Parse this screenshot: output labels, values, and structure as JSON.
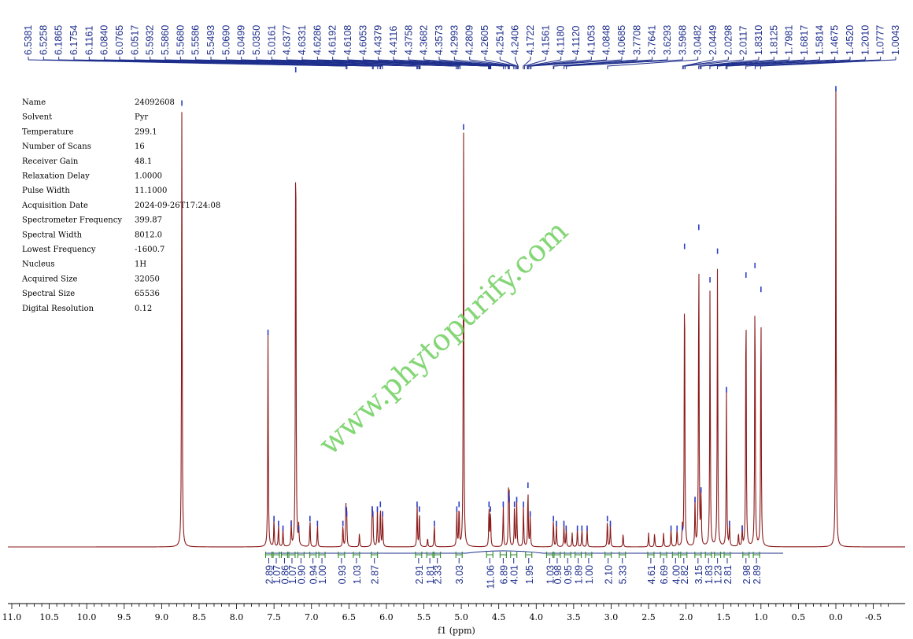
{
  "chart_data": {
    "type": "line",
    "title": "",
    "xlabel": "f1 (ppm)",
    "ylabel": "",
    "xlim": [
      11.0,
      -0.7
    ],
    "x_ticks": [
      "11.0",
      "10.5",
      "10.0",
      "9.5",
      "9.0",
      "8.5",
      "8.0",
      "7.5",
      "7.0",
      "6.5",
      "6.0",
      "5.5",
      "5.0",
      "4.5",
      "4.0",
      "3.5",
      "3.0",
      "2.5",
      "2.0",
      "1.5",
      "1.0",
      "0.5",
      "0.0",
      "-0.5"
    ],
    "x_tick_values": [
      11.0,
      10.5,
      10.0,
      9.5,
      9.0,
      8.5,
      8.0,
      7.5,
      7.0,
      6.5,
      6.0,
      5.5,
      5.0,
      4.5,
      4.0,
      3.5,
      3.0,
      2.5,
      2.0,
      1.5,
      1.0,
      0.5,
      0.0,
      -0.5
    ],
    "line_color": "#8b1a1a",
    "peak_label_color": "#1f2f8c",
    "integral_color": "#2e8b2e",
    "peaks_ppm": [
      "6.5381",
      "6.5258",
      "6.1865",
      "6.1754",
      "6.1161",
      "6.0840",
      "6.0765",
      "6.0517",
      "5.5932",
      "5.5860",
      "5.5680",
      "5.5586",
      "5.5493",
      "5.0690",
      "5.0499",
      "5.0350",
      "5.0161",
      "4.6377",
      "4.6331",
      "4.6286",
      "4.6192",
      "4.6108",
      "4.6053",
      "4.4379",
      "4.4116",
      "4.3758",
      "4.3682",
      "4.3573",
      "4.2993",
      "4.2809",
      "4.2605",
      "4.2514",
      "4.2406",
      "4.1722",
      "4.1561",
      "4.1180",
      "4.1120",
      "4.1053",
      "4.0848",
      "4.0685",
      "3.7708",
      "3.7641",
      "3.6293",
      "3.5968",
      "3.0482",
      "2.0449",
      "2.0298",
      "2.0117",
      "1.8310",
      "1.8125",
      "1.7981",
      "1.6817",
      "1.5814",
      "1.4675",
      "1.4520",
      "1.2010",
      "1.0777",
      "1.0043"
    ],
    "integrals": [
      "2.89",
      "1.07",
      "0.86",
      "1.07",
      "0.90",
      "0.94",
      "1.00",
      "0.93",
      "1.03",
      "2.87",
      "2.91",
      "1.81",
      "2.33",
      "3.03",
      "11.06",
      "6.89",
      "4.01",
      "1.95",
      "1.03",
      "0.98",
      "0.95",
      "1.89",
      "1.00",
      "2.10",
      "5.33",
      "4.61",
      "6.69",
      "4.00",
      "2.82",
      "3.15",
      "1.83",
      "1.23",
      "2.81",
      "2.98",
      "2.89"
    ],
    "integral_centers": [
      7.57,
      7.47,
      7.36,
      7.26,
      7.14,
      6.98,
      6.86,
      6.6,
      6.4,
      6.16,
      5.57,
      5.42,
      5.32,
      5.03,
      4.62,
      4.44,
      4.3,
      4.1,
      3.82,
      3.72,
      3.58,
      3.44,
      3.3,
      3.04,
      2.85,
      2.47,
      2.3,
      2.14,
      2.03,
      1.84,
      1.7,
      1.58,
      1.45,
      1.2,
      1.06
    ],
    "spectrum_peaks": [
      {
        "ppm": 8.73,
        "height": 0.93
      },
      {
        "ppm": 7.58,
        "height": 0.45
      },
      {
        "ppm": 7.5,
        "height": 0.06
      },
      {
        "ppm": 7.44,
        "height": 0.05
      },
      {
        "ppm": 7.38,
        "height": 0.04
      },
      {
        "ppm": 7.27,
        "height": 0.05
      },
      {
        "ppm": 7.21,
        "height": 1.0
      },
      {
        "ppm": 7.17,
        "height": 0.04
      },
      {
        "ppm": 7.02,
        "height": 0.06
      },
      {
        "ppm": 6.92,
        "height": 0.05
      },
      {
        "ppm": 6.58,
        "height": 0.05
      },
      {
        "ppm": 6.54,
        "height": 0.08
      },
      {
        "ppm": 6.53,
        "height": 0.07
      },
      {
        "ppm": 6.36,
        "height": 0.03
      },
      {
        "ppm": 6.19,
        "height": 0.08
      },
      {
        "ppm": 6.18,
        "height": 0.07
      },
      {
        "ppm": 6.12,
        "height": 0.08
      },
      {
        "ppm": 6.08,
        "height": 0.09
      },
      {
        "ppm": 6.05,
        "height": 0.07
      },
      {
        "ppm": 5.59,
        "height": 0.09
      },
      {
        "ppm": 5.56,
        "height": 0.08
      },
      {
        "ppm": 5.45,
        "height": 0.02
      },
      {
        "ppm": 5.36,
        "height": 0.05
      },
      {
        "ppm": 5.06,
        "height": 0.08
      },
      {
        "ppm": 5.03,
        "height": 0.09
      },
      {
        "ppm": 4.97,
        "height": 0.88
      },
      {
        "ppm": 4.63,
        "height": 0.09
      },
      {
        "ppm": 4.61,
        "height": 0.08
      },
      {
        "ppm": 4.44,
        "height": 0.09
      },
      {
        "ppm": 4.37,
        "height": 0.11
      },
      {
        "ppm": 4.36,
        "height": 0.1
      },
      {
        "ppm": 4.29,
        "height": 0.09
      },
      {
        "ppm": 4.26,
        "height": 0.1
      },
      {
        "ppm": 4.17,
        "height": 0.09
      },
      {
        "ppm": 4.11,
        "height": 0.13
      },
      {
        "ppm": 4.08,
        "height": 0.07
      },
      {
        "ppm": 3.77,
        "height": 0.06
      },
      {
        "ppm": 3.73,
        "height": 0.05
      },
      {
        "ppm": 3.63,
        "height": 0.05
      },
      {
        "ppm": 3.6,
        "height": 0.04
      },
      {
        "ppm": 3.52,
        "height": 0.03
      },
      {
        "ppm": 3.45,
        "height": 0.04
      },
      {
        "ppm": 3.39,
        "height": 0.04
      },
      {
        "ppm": 3.32,
        "height": 0.04
      },
      {
        "ppm": 3.05,
        "height": 0.06
      },
      {
        "ppm": 3.01,
        "height": 0.05
      },
      {
        "ppm": 2.84,
        "height": 0.03
      },
      {
        "ppm": 2.5,
        "height": 0.03
      },
      {
        "ppm": 2.42,
        "height": 0.03
      },
      {
        "ppm": 2.3,
        "height": 0.03
      },
      {
        "ppm": 2.2,
        "height": 0.04
      },
      {
        "ppm": 2.12,
        "height": 0.04
      },
      {
        "ppm": 2.05,
        "height": 0.04
      },
      {
        "ppm": 2.02,
        "height": 0.63
      },
      {
        "ppm": 1.88,
        "height": 0.1
      },
      {
        "ppm": 1.83,
        "height": 0.67
      },
      {
        "ppm": 1.8,
        "height": 0.12
      },
      {
        "ppm": 1.68,
        "height": 0.56
      },
      {
        "ppm": 1.58,
        "height": 0.62
      },
      {
        "ppm": 1.46,
        "height": 0.33
      },
      {
        "ppm": 1.42,
        "height": 0.05
      },
      {
        "ppm": 1.3,
        "height": 0.03
      },
      {
        "ppm": 1.25,
        "height": 0.04
      },
      {
        "ppm": 1.2,
        "height": 0.57
      },
      {
        "ppm": 1.08,
        "height": 0.59
      },
      {
        "ppm": 1.0,
        "height": 0.54
      },
      {
        "ppm": 0.0,
        "height": 0.96
      }
    ]
  },
  "parameters": [
    {
      "label": "Name",
      "value": "24092608"
    },
    {
      "label": "Solvent",
      "value": "Pyr"
    },
    {
      "label": "Temperature",
      "value": "299.1"
    },
    {
      "label": "Number of Scans",
      "value": "16"
    },
    {
      "label": "Receiver Gain",
      "value": "48.1"
    },
    {
      "label": "Relaxation Delay",
      "value": "1.0000"
    },
    {
      "label": "Pulse Width",
      "value": "11.1000"
    },
    {
      "label": "Acquisition Date",
      "value": "2024-09-26T17:24:08"
    },
    {
      "label": "Spectrometer Frequency",
      "value": "399.87"
    },
    {
      "label": "Spectral Width",
      "value": "8012.0"
    },
    {
      "label": "Lowest Frequency",
      "value": "-1600.7"
    },
    {
      "label": "Nucleus",
      "value": "1H"
    },
    {
      "label": "Acquired Size",
      "value": "32050"
    },
    {
      "label": "Spectral Size",
      "value": "65536"
    },
    {
      "label": "Digital Resolution",
      "value": "0.12"
    }
  ],
  "watermark": "www.phytopurify.com"
}
